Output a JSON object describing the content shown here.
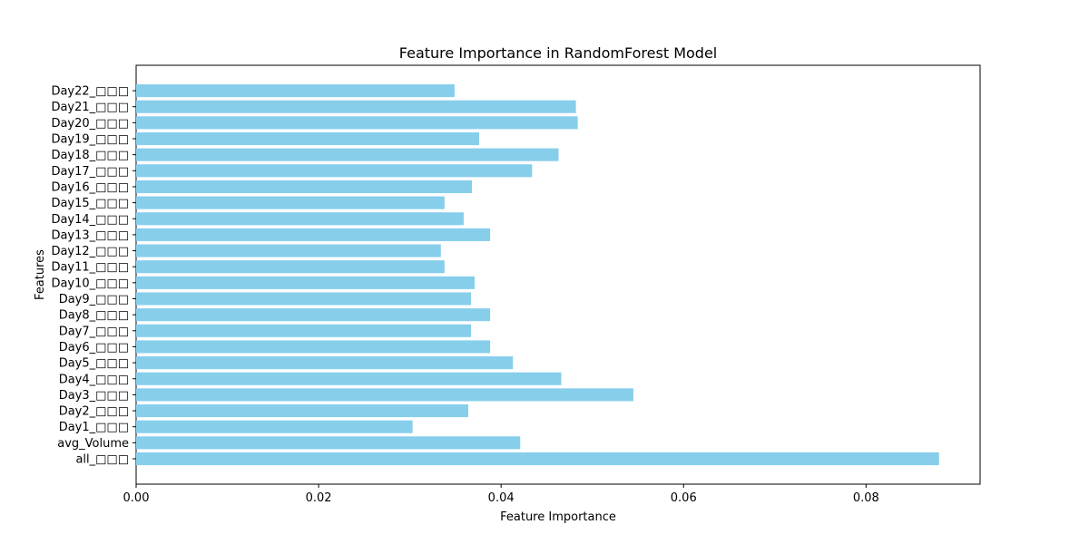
{
  "chart_data": {
    "type": "bar",
    "orientation": "horizontal",
    "title": "Feature Importance in RandomForest Model",
    "xlabel": "Feature Importance",
    "ylabel": "Features",
    "xlim": [
      0.0,
      0.0925
    ],
    "xticks": [
      0.0,
      0.02,
      0.04,
      0.06,
      0.08
    ],
    "xtick_labels": [
      "0.00",
      "0.02",
      "0.04",
      "0.06",
      "0.08"
    ],
    "grid": false,
    "bar_color": "#87CEEB",
    "categories": [
      "all_□□□",
      "avg_Volume",
      "Day1_□□□",
      "Day2_□□□",
      "Day3_□□□",
      "Day4_□□□",
      "Day5_□□□",
      "Day6_□□□",
      "Day7_□□□",
      "Day8_□□□",
      "Day9_□□□",
      "Day10_□□□",
      "Day11_□□□",
      "Day12_□□□",
      "Day13_□□□",
      "Day14_□□□",
      "Day15_□□□",
      "Day16_□□□",
      "Day17_□□□",
      "Day18_□□□",
      "Day19_□□□",
      "Day20_□□□",
      "Day21_□□□",
      "Day22_□□□"
    ],
    "values": [
      0.088,
      0.0421,
      0.0303,
      0.0364,
      0.0545,
      0.0466,
      0.0413,
      0.0388,
      0.0367,
      0.0388,
      0.0367,
      0.0371,
      0.0338,
      0.0334,
      0.0388,
      0.0359,
      0.0338,
      0.0368,
      0.0434,
      0.0463,
      0.0376,
      0.0484,
      0.0482,
      0.0349
    ]
  }
}
